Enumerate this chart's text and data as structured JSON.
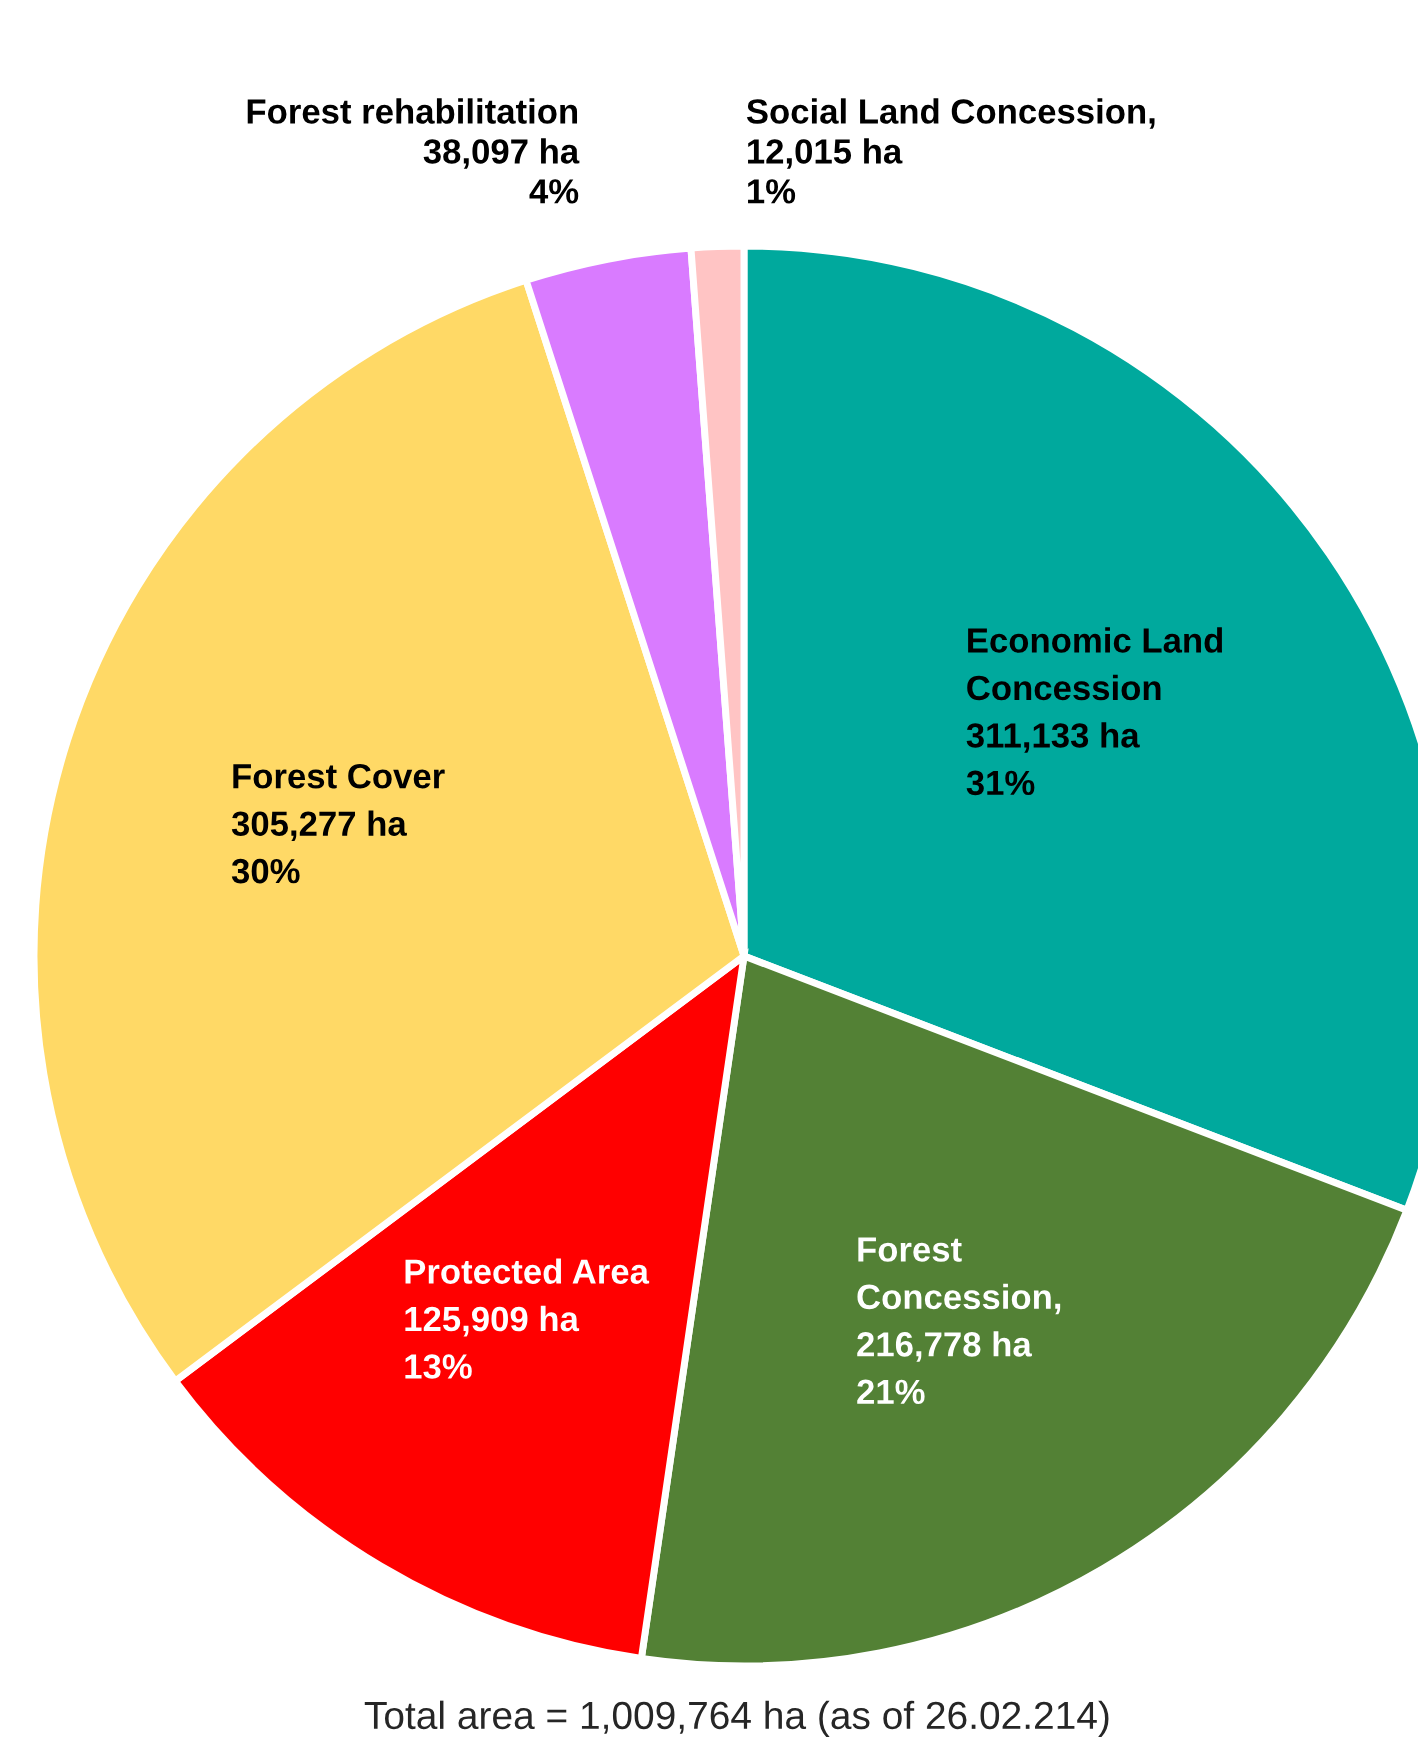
{
  "chart_data": {
    "type": "pie",
    "categories": [
      "Economic Land\nConcession",
      "Forest\nConcession",
      "Protected Area",
      "Forest Cover",
      "Forest rehabilitation",
      "Social Land Concession"
    ],
    "values": [
      311133,
      216778,
      125909,
      305277,
      38097,
      12015
    ],
    "value_labels": [
      "311,133 ha\n31%",
      ",\n216,778 ha\n21%",
      "125,909 ha\n13%",
      "305,277 ha\n30%",
      "38,097 ha\n4%",
      ",\n12,015 ha\n1%"
    ],
    "colors": [
      "#00a99d",
      "#538135",
      "#ff0000",
      "#ffd966",
      "#d97bff",
      "#ffc4c4"
    ],
    "annotations": [
      "Total area = 1,009,764 ha (as of 26.02.214)"
    ]
  }
}
